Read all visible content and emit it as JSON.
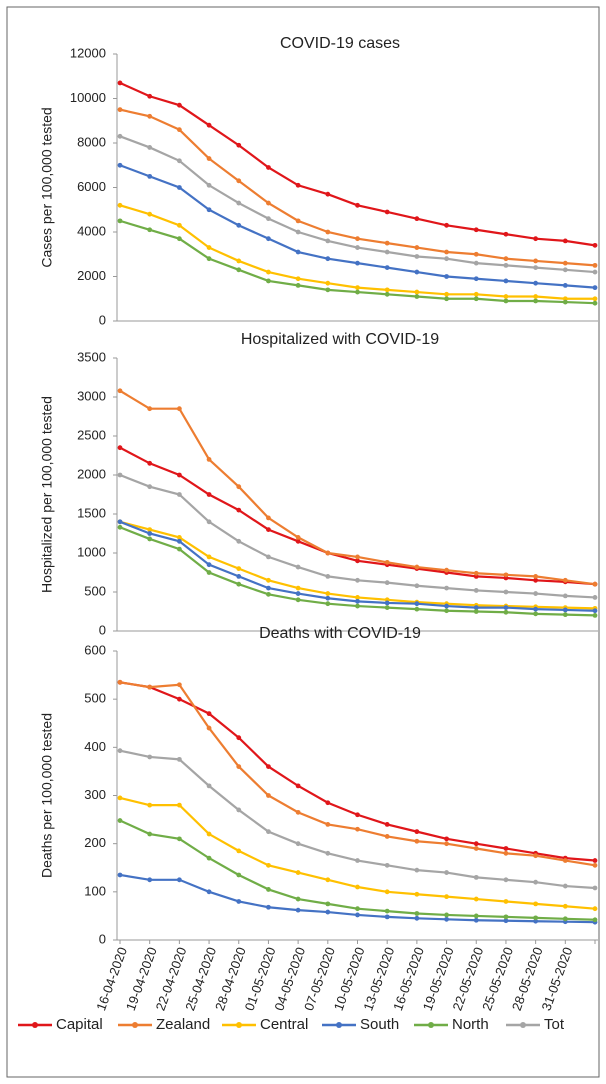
{
  "chart_data": [
    {
      "type": "line",
      "title": "COVID-19 cases",
      "y_label": "Cases per 100,000 tested",
      "ylim": [
        0,
        12000
      ],
      "yticks": [
        0,
        2000,
        4000,
        6000,
        8000,
        10000,
        12000
      ],
      "series": [
        {
          "color": "#e0161a",
          "values": [
            10700,
            10100,
            9700,
            8800,
            7900,
            6900,
            6100,
            5700,
            5200,
            4900,
            4600,
            4300,
            4100,
            3900,
            3700,
            3600,
            3400
          ]
        },
        {
          "color": "#ed7d31",
          "values": [
            9500,
            9200,
            8600,
            7300,
            6300,
            5300,
            4500,
            4000,
            3700,
            3500,
            3300,
            3100,
            3000,
            2800,
            2700,
            2600,
            2500
          ]
        },
        {
          "color": "#ffc000",
          "values": [
            5200,
            4800,
            4300,
            3300,
            2700,
            2200,
            1900,
            1700,
            1500,
            1400,
            1300,
            1200,
            1200,
            1100,
            1100,
            1000,
            1000
          ]
        },
        {
          "color": "#4472c4",
          "values": [
            7000,
            6500,
            6000,
            5000,
            4300,
            3700,
            3100,
            2800,
            2600,
            2400,
            2200,
            2000,
            1900,
            1800,
            1700,
            1600,
            1500
          ]
        },
        {
          "color": "#70ad47",
          "values": [
            4500,
            4100,
            3700,
            2800,
            2300,
            1800,
            1600,
            1400,
            1300,
            1200,
            1100,
            1000,
            1000,
            900,
            900,
            850,
            800
          ]
        },
        {
          "color": "#a5a5a5",
          "values": [
            8300,
            7800,
            7200,
            6100,
            5300,
            4600,
            4000,
            3600,
            3300,
            3100,
            2900,
            2800,
            2600,
            2500,
            2400,
            2300,
            2200
          ]
        }
      ]
    },
    {
      "type": "line",
      "title": "Hospitalized with COVID-19",
      "y_label": "Hospitalized per 100,000 tested",
      "ylim": [
        0,
        3500
      ],
      "yticks": [
        0,
        500,
        1000,
        1500,
        2000,
        2500,
        3000,
        3500
      ],
      "series": [
        {
          "color": "#e0161a",
          "values": [
            2350,
            2150,
            2000,
            1750,
            1550,
            1300,
            1150,
            1000,
            900,
            850,
            800,
            750,
            700,
            680,
            650,
            630,
            600
          ]
        },
        {
          "color": "#ed7d31",
          "values": [
            3080,
            2850,
            2850,
            2200,
            1850,
            1450,
            1200,
            1000,
            950,
            880,
            820,
            780,
            740,
            720,
            700,
            650,
            600
          ]
        },
        {
          "color": "#ffc000",
          "values": [
            1400,
            1300,
            1200,
            950,
            800,
            650,
            550,
            480,
            430,
            400,
            370,
            350,
            330,
            320,
            310,
            300,
            290
          ]
        },
        {
          "color": "#4472c4",
          "values": [
            1400,
            1250,
            1150,
            850,
            700,
            550,
            480,
            420,
            380,
            360,
            350,
            320,
            300,
            300,
            280,
            270,
            260
          ]
        },
        {
          "color": "#70ad47",
          "values": [
            1330,
            1180,
            1050,
            750,
            600,
            470,
            400,
            350,
            320,
            300,
            280,
            260,
            250,
            240,
            220,
            210,
            200
          ]
        },
        {
          "color": "#a5a5a5",
          "values": [
            2000,
            1850,
            1750,
            1400,
            1150,
            950,
            820,
            700,
            650,
            620,
            580,
            550,
            520,
            500,
            480,
            450,
            430
          ]
        }
      ]
    },
    {
      "type": "line",
      "title": "Deaths with COVID-19",
      "y_label": "Deaths per 100,000 tested",
      "ylim": [
        0,
        600
      ],
      "yticks": [
        0,
        100,
        200,
        300,
        400,
        500,
        600
      ],
      "categories": [
        "16-04-2020",
        "19-04-2020",
        "22-04-2020",
        "25-04-2020",
        "28-04-2020",
        "01-05-2020",
        "04-05-2020",
        "07-05-2020",
        "10-05-2020",
        "13-05-2020",
        "16-05-2020",
        "19-05-2020",
        "22-05-2020",
        "25-05-2020",
        "28-05-2020",
        "31-05-2020",
        null
      ],
      "series": [
        {
          "name": "Capital",
          "color": "#e0161a",
          "values": [
            535,
            525,
            500,
            470,
            420,
            360,
            320,
            285,
            260,
            240,
            225,
            210,
            200,
            190,
            180,
            170,
            165
          ]
        },
        {
          "name": "Zealand",
          "color": "#ed7d31",
          "values": [
            535,
            525,
            530,
            440,
            360,
            300,
            265,
            240,
            230,
            215,
            205,
            200,
            190,
            180,
            175,
            165,
            155
          ]
        },
        {
          "name": "Central",
          "color": "#ffc000",
          "values": [
            295,
            280,
            280,
            220,
            185,
            155,
            140,
            125,
            110,
            100,
            95,
            90,
            85,
            80,
            75,
            70,
            65
          ]
        },
        {
          "name": "South",
          "color": "#4472c4",
          "values": [
            135,
            125,
            125,
            100,
            80,
            68,
            62,
            58,
            52,
            48,
            45,
            43,
            41,
            40,
            39,
            38,
            37
          ]
        },
        {
          "name": "North",
          "color": "#70ad47",
          "values": [
            248,
            220,
            210,
            170,
            135,
            105,
            85,
            75,
            65,
            60,
            55,
            52,
            50,
            48,
            46,
            44,
            42
          ]
        },
        {
          "name": "Tot",
          "color": "#a5a5a5",
          "values": [
            393,
            380,
            375,
            320,
            270,
            225,
            200,
            180,
            165,
            155,
            145,
            140,
            130,
            125,
            120,
            112,
            108
          ]
        }
      ]
    }
  ]
}
